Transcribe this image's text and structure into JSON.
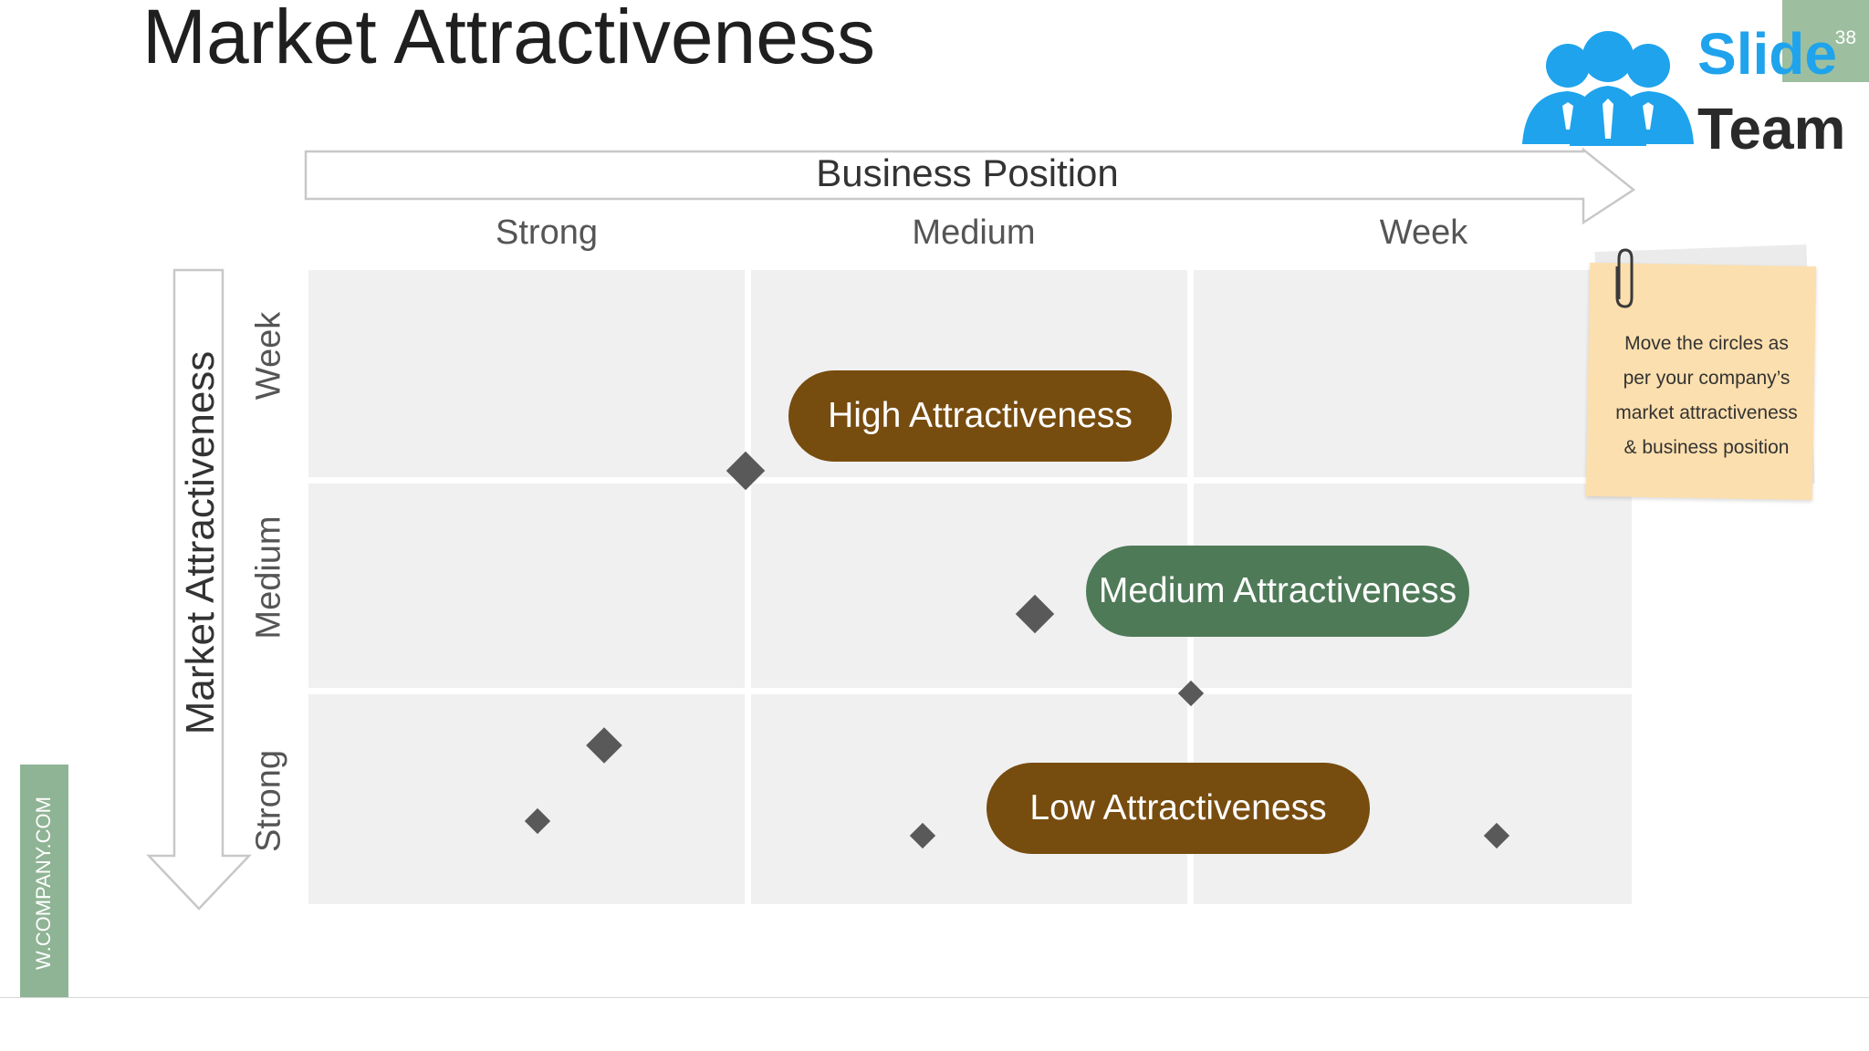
{
  "slide": {
    "title": "Market Attractiveness",
    "page_number": "38",
    "website_strip": "W.COMPANY.COM"
  },
  "logo": {
    "line1": "Slide",
    "line2": "Team",
    "icon": "people-group-icon"
  },
  "business_position": {
    "label": "Business Position",
    "columns": [
      "Strong",
      "Medium",
      "Week"
    ]
  },
  "market_attractiveness": {
    "label": "Market Attractiveness",
    "rows": [
      "Week",
      "Medium",
      "Strong"
    ]
  },
  "categories": {
    "high": "High Attractiveness",
    "medium": "Medium Attractiveness",
    "low": "Low Attractiveness"
  },
  "note": {
    "line1": "Move the circles as",
    "line2": "per your company’s",
    "line3": "market attractiveness",
    "line4": "& business position"
  },
  "colors": {
    "high": "#774c0f",
    "medium": "#4e7a58",
    "low": "#774c0f",
    "marker": "#595959",
    "cell": "#f0f0f0",
    "note": "#fcdfae",
    "accent_green": "#8fb495",
    "logo_blue": "#1fa3ec"
  }
}
